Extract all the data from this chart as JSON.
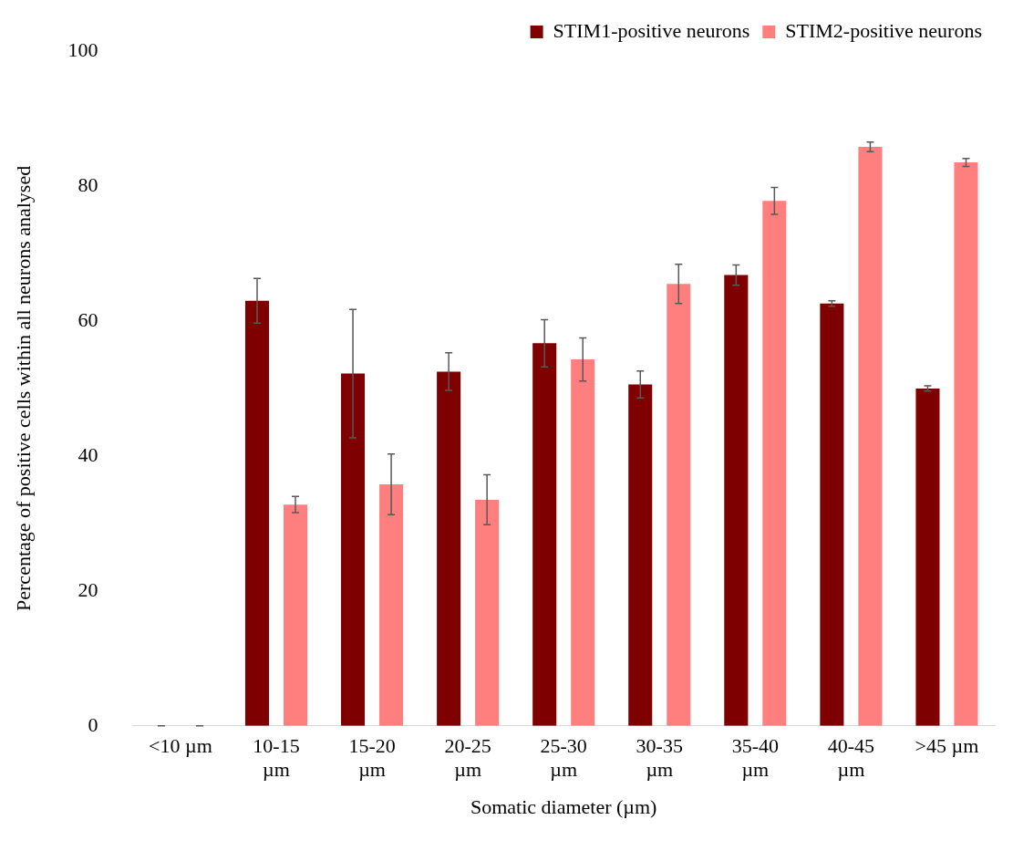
{
  "chart_data": {
    "type": "bar",
    "xlabel": "Somatic diameter (µm)",
    "ylabel": "Percentage of positive cells within all neurons analysed",
    "categories": [
      "<10 µm",
      "10-15 µm",
      "15-20 µm",
      "20-25 µm",
      "25-30 µm",
      "30-35 µm",
      "35-40 µm",
      "40-45 µm",
      ">45 µm"
    ],
    "series": [
      {
        "name": "STIM1-positive neurons",
        "color": "#7f0000",
        "values": [
          0,
          63,
          52.2,
          52.5,
          56.7,
          50.6,
          66.8,
          62.6,
          50
        ],
        "errors": [
          0,
          3.3,
          9.5,
          2.8,
          3.5,
          2,
          1.5,
          0.4,
          0.4
        ]
      },
      {
        "name": "STIM2-positive neurons",
        "color": "#ff7f7f",
        "values": [
          0,
          32.8,
          35.8,
          33.5,
          54.3,
          65.5,
          77.8,
          85.8,
          83.5
        ],
        "errors": [
          0,
          1.2,
          4.5,
          3.7,
          3.2,
          2.9,
          2,
          0.7,
          0.6
        ]
      }
    ],
    "ylim": [
      0,
      100
    ],
    "yticks": [
      0,
      20,
      40,
      60,
      80,
      100
    ],
    "legend": "top right"
  }
}
